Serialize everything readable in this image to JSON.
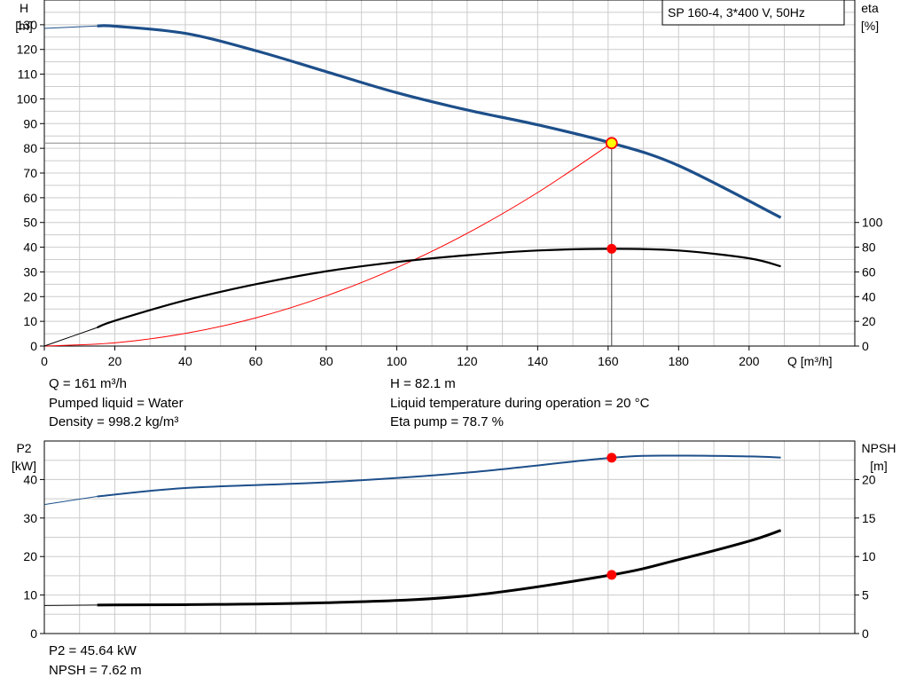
{
  "chart_data": [
    {
      "type": "line",
      "name": "pump-curve",
      "legend": "SP 160-4, 3*400 V, 50Hz",
      "xlabel": "Q [m³/h]",
      "ylabel": "H",
      "ylabel_unit": "[m]",
      "y2label": "eta",
      "y2label_unit": "[%]",
      "xlim": [
        0,
        230
      ],
      "xticks": [
        0,
        20,
        40,
        60,
        80,
        100,
        120,
        140,
        160,
        180,
        200
      ],
      "ylim": [
        0,
        140
      ],
      "yticks": [
        0,
        10,
        20,
        30,
        40,
        50,
        60,
        70,
        80,
        90,
        100,
        110,
        120,
        130
      ],
      "y2lim": [
        0,
        280
      ],
      "y2ticks": [
        0,
        20,
        40,
        60,
        80,
        100
      ],
      "grid": true,
      "operating_point": {
        "q": 161,
        "h": 82.1,
        "eta": 78.7
      },
      "series": [
        {
          "key": "h",
          "axis": "left",
          "color": "#1d4f8a",
          "x": [
            15,
            20,
            40,
            60,
            80,
            100,
            120,
            140,
            161,
            180,
            209
          ],
          "y": [
            129.5,
            129.4,
            126.5,
            119.5,
            111,
            102.5,
            95.5,
            89.5,
            82.1,
            73,
            52
          ]
        },
        {
          "key": "eta",
          "axis": "right",
          "color": "#000000",
          "x": [
            15,
            20,
            40,
            60,
            80,
            100,
            120,
            140,
            161,
            180,
            200,
            209
          ],
          "y": [
            15,
            20.5,
            37,
            50,
            60.5,
            68,
            73.5,
            77.3,
            78.7,
            77.3,
            71,
            64.5
          ]
        }
      ],
      "system_curve": {
        "color": "#ff0000",
        "x": [
          0,
          20,
          40,
          60,
          80,
          100,
          120,
          140,
          161
        ],
        "y": [
          0,
          1.3,
          5.1,
          11.4,
          20.3,
          31.7,
          45.6,
          62.1,
          82.1
        ]
      },
      "extrapolation": {
        "h": {
          "x": [
            0,
            15
          ],
          "y": [
            128.5,
            129.5
          ]
        },
        "eta": {
          "x": [
            0,
            15
          ],
          "y": [
            0,
            15
          ]
        }
      }
    },
    {
      "type": "line",
      "name": "power-npsh",
      "ylabel": "P2",
      "ylabel_unit": "[kW]",
      "y2label": "NPSH",
      "y2label_unit": "[m]",
      "xlim": [
        0,
        230
      ],
      "ylim": [
        0,
        50
      ],
      "yticks": [
        0,
        10,
        20,
        30,
        40
      ],
      "y2lim": [
        0,
        25
      ],
      "y2ticks": [
        0,
        5,
        10,
        15,
        20
      ],
      "grid": true,
      "operating_point": {
        "q": 161,
        "p2": 45.64,
        "npsh": 7.62
      },
      "series": [
        {
          "key": "p2",
          "axis": "left",
          "color": "#1d4f8a",
          "x": [
            15,
            40,
            80,
            120,
            161,
            180,
            200,
            209
          ],
          "y": [
            35.6,
            37.8,
            39.3,
            41.8,
            45.64,
            46.2,
            46,
            45.7
          ]
        },
        {
          "key": "npsh",
          "axis": "right",
          "color": "#000000",
          "x": [
            15,
            40,
            80,
            120,
            161,
            180,
            200,
            209
          ],
          "y": [
            3.7,
            3.75,
            4.0,
            4.9,
            7.62,
            9.6,
            12,
            13.4
          ]
        }
      ],
      "extrapolation": {
        "p2": {
          "x": [
            0,
            15
          ],
          "y": [
            33.5,
            35.6
          ]
        },
        "npsh": {
          "x": [
            0,
            15
          ],
          "y": [
            3.65,
            3.7
          ]
        }
      }
    }
  ],
  "info_top": {
    "q": "Q = 161 m³/h",
    "liquid": "Pumped liquid = Water",
    "density": "Density = 998.2 kg/m³",
    "h": "H = 82.1 m",
    "temp": "Liquid temperature during operation = 20 °C",
    "eta": "Eta pump = 78.7 %"
  },
  "info_bottom": {
    "p2": "P2 = 45.64 kW",
    "npsh": "NPSH = 7.62 m"
  }
}
